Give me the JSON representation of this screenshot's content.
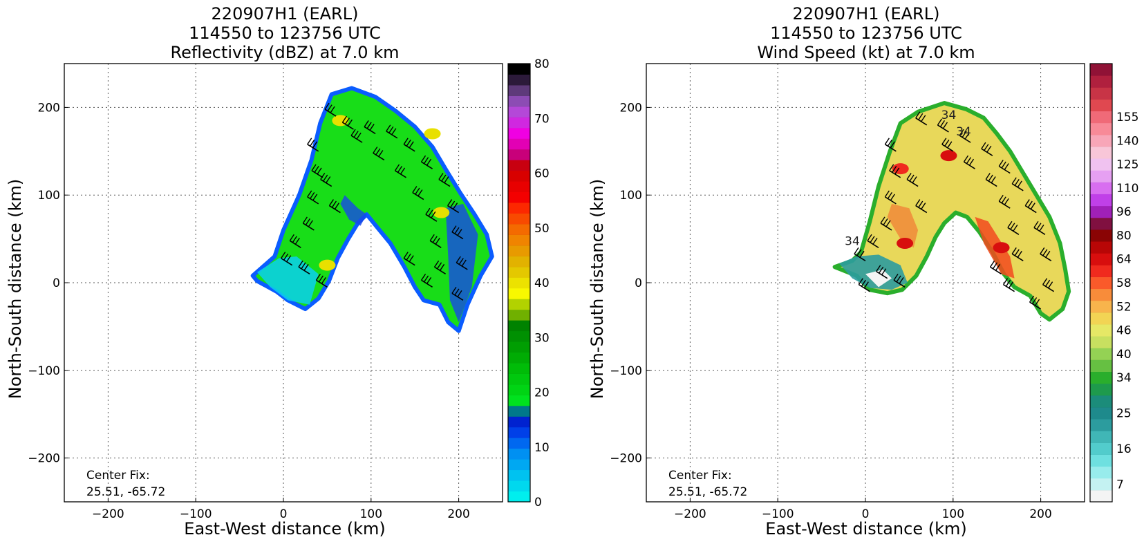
{
  "figure": {
    "width": 1655,
    "height": 787
  },
  "chart_data": [
    {
      "type": "heatmap",
      "id": "left",
      "title_lines": [
        "220907H1 (EARL)",
        "114550 to 123756 UTC",
        "Reflectivity (dBZ) at 7.0 km"
      ],
      "xlabel": "East-West distance (km)",
      "ylabel": "North-South distance (km)",
      "xlim": [
        -250,
        250
      ],
      "ylim": [
        -250,
        250
      ],
      "xticks": [
        -200,
        -100,
        0,
        100,
        200
      ],
      "yticks": [
        -200,
        -100,
        0,
        100,
        200
      ],
      "grid": true,
      "annotation": [
        "Center Fix:",
        "25.51, -65.72"
      ],
      "colorbar": {
        "min": 0,
        "max": 80,
        "labels": [
          0,
          10,
          20,
          30,
          40,
          50,
          60,
          70,
          80
        ],
        "colors": [
          "#00eeee",
          "#00d8ee",
          "#00c2f0",
          "#00a8f2",
          "#0090f2",
          "#0068f0",
          "#0040e8",
          "#0022d0",
          "#00788a",
          "#00e21e",
          "#00d414",
          "#00c80e",
          "#00bc08",
          "#00ac04",
          "#009e02",
          "#009002",
          "#008200",
          "#70b000",
          "#b2d200",
          "#f8f800",
          "#ece200",
          "#e4c800",
          "#e2b200",
          "#e89a00",
          "#f08400",
          "#f46a00",
          "#f84a00",
          "#fc2800",
          "#f40000",
          "#e80000",
          "#d80000",
          "#c80010",
          "#c8007a",
          "#e200b4",
          "#f000e2",
          "#d028e0",
          "#b448d8",
          "#8c4cb4",
          "#5e3a7a",
          "#2c1a3a",
          "#000000"
        ]
      },
      "field_color": "#18dd18",
      "barb_color": "#000000",
      "features": [
        {
          "type": "core",
          "x": 65,
          "y": 185,
          "color": "#e8e000"
        },
        {
          "type": "core",
          "x": 170,
          "y": 170,
          "color": "#e8e000"
        },
        {
          "type": "core",
          "x": 180,
          "y": 80,
          "color": "#e8e000"
        },
        {
          "type": "core",
          "x": 50,
          "y": 20,
          "color": "#e8e000"
        }
      ]
    },
    {
      "type": "heatmap",
      "id": "right",
      "title_lines": [
        "220907H1 (EARL)",
        "114550 to 123756 UTC",
        "Wind Speed (kt) at 7.0 km"
      ],
      "xlabel": "East-West distance (km)",
      "ylabel": "North-South distance (km)",
      "xlim": [
        -250,
        250
      ],
      "ylim": [
        -250,
        250
      ],
      "xticks": [
        -200,
        -100,
        0,
        100,
        200
      ],
      "yticks": [
        -200,
        -100,
        0,
        100,
        200
      ],
      "grid": true,
      "annotation": [
        "Center Fix:",
        "25.51, -65.72"
      ],
      "contour_labels": [
        {
          "text": "34",
          "x": 95,
          "y": 187
        },
        {
          "text": "34",
          "x": 112,
          "y": 168
        },
        {
          "text": "34",
          "x": -15,
          "y": 43
        }
      ],
      "colorbar": {
        "min": 0,
        "max": 160,
        "labels": [
          7,
          16,
          25,
          34,
          40,
          46,
          52,
          58,
          64,
          80,
          96,
          110,
          125,
          140,
          155
        ],
        "label_positions": [
          1,
          4,
          7,
          10,
          12,
          14,
          16,
          18,
          20,
          22,
          24,
          26,
          28,
          30,
          32
        ],
        "colors": [
          "#f4f4f4",
          "#c4f2f2",
          "#98ecec",
          "#6ee0e0",
          "#52cccc",
          "#40b6b6",
          "#2c9c9e",
          "#1e8a8c",
          "#1b8c7a",
          "#1e9a4c",
          "#2aae2c",
          "#66c042",
          "#94d254",
          "#c8e060",
          "#e6e866",
          "#f2d454",
          "#f8b44c",
          "#f88c3a",
          "#fa5a2a",
          "#f02a1e",
          "#d80e0e",
          "#b80606",
          "#8a0404",
          "#801040",
          "#a020b8",
          "#c040e8",
          "#d86ef0",
          "#e6a0f2",
          "#f0c2f0",
          "#f8c6d8",
          "#f8a6b8",
          "#f88a98",
          "#f06a78",
          "#e04850",
          "#c83446",
          "#b0203e",
          "#901236"
        ]
      },
      "field_color": "#e8d85a",
      "barb_color": "#000000",
      "features": [
        {
          "type": "band",
          "x": 40,
          "y": 130,
          "color": "#f02a1e"
        },
        {
          "type": "band",
          "x": 95,
          "y": 145,
          "color": "#d80e0e"
        },
        {
          "type": "band",
          "x": 155,
          "y": 40,
          "color": "#d80e0e"
        },
        {
          "type": "band",
          "x": 45,
          "y": 45,
          "color": "#d80e0e"
        }
      ]
    }
  ]
}
